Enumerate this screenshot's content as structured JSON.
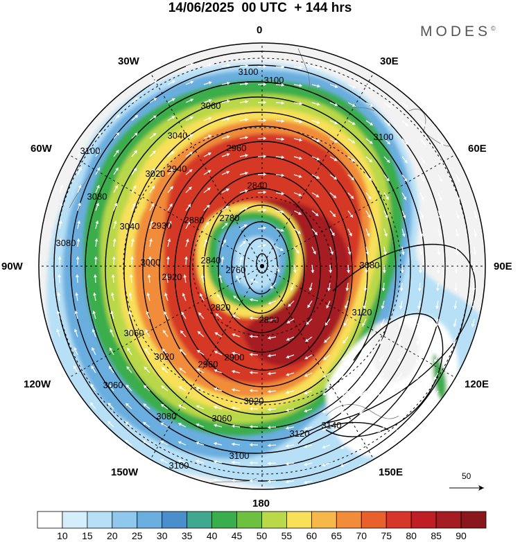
{
  "title": "14/06/2025  00 UTC  + 144 hrs",
  "brand": "MODES",
  "brand_mark": "©",
  "lon_labels": [
    "0",
    "30E",
    "60E",
    "90E",
    "120E",
    "150E",
    "180",
    "150W",
    "120W",
    "90W",
    "60W",
    "30W"
  ],
  "contour_labels": [
    "3100",
    "3060",
    "3040",
    "2960",
    "2840",
    "2780",
    "2760",
    "3020",
    "2940",
    "2930",
    "2880",
    "3100",
    "3080",
    "3080",
    "3040",
    "3000",
    "2920",
    "2840",
    "2820",
    "2800",
    "2900",
    "3120",
    "3080",
    "3060",
    "3060",
    "3020",
    "2960",
    "3020",
    "3080",
    "3060",
    "3100",
    "3120",
    "3140",
    "3100",
    "3100",
    "3100"
  ],
  "reference_vector": {
    "label": "50"
  },
  "colorbar": {
    "ticks": [
      "10",
      "15",
      "20",
      "25",
      "30",
      "35",
      "40",
      "45",
      "50",
      "55",
      "60",
      "65",
      "70",
      "75",
      "80",
      "85",
      "90"
    ],
    "colors": [
      "#ffffff",
      "#d4eefb",
      "#b7e0f6",
      "#8fc8ec",
      "#6aaedf",
      "#4a8fcc",
      "#3fa88f",
      "#3aad4c",
      "#6ec140",
      "#b9d84a",
      "#f8e05a",
      "#f6b84a",
      "#f18c3a",
      "#e8612d",
      "#d63728",
      "#bf1f24",
      "#a51b22",
      "#8a171c"
    ]
  }
}
